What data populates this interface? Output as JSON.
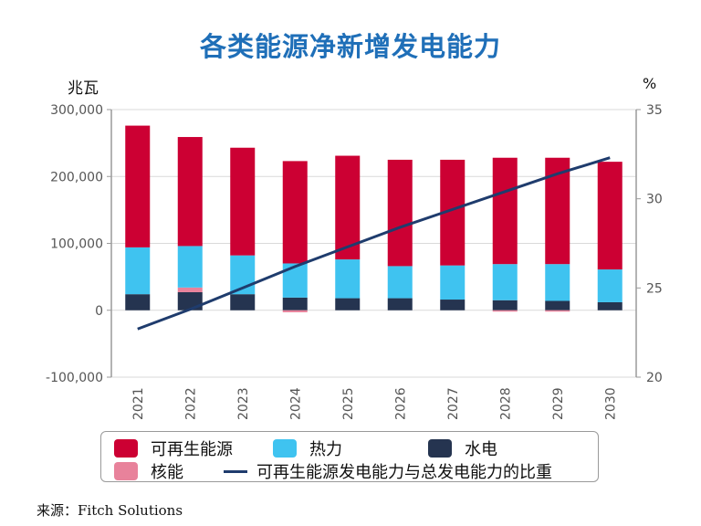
{
  "title": "各类能源净新增发电能力",
  "unit_left": "兆瓦",
  "unit_right": "%",
  "source": "来源：Fitch Solutions",
  "colors": {
    "renewable": "#cc0033",
    "thermal": "#3fc3f0",
    "hydro": "#253450",
    "nuclear": "#e8829b",
    "share_line": "#1f3c6d",
    "grid": "#d9d9d9",
    "axis": "#9a9a9a"
  },
  "legend": {
    "renewable": "可再生能源",
    "thermal": "热力",
    "hydro": "水电",
    "nuclear": "核能",
    "share_line": "可再生能源发电能力与总发电能力的比重"
  },
  "chart_data": {
    "type": "bar",
    "stacked": true,
    "categories": [
      "2021",
      "2022",
      "2023",
      "2024",
      "2025",
      "2026",
      "2027",
      "2028",
      "2029",
      "2030"
    ],
    "series": [
      {
        "name": "水电",
        "key": "hydro",
        "values": [
          24000,
          27000,
          24000,
          19000,
          18000,
          18000,
          16000,
          15000,
          14000,
          12000
        ]
      },
      {
        "name": "核能",
        "key": "nuclear",
        "values": [
          0,
          7000,
          0,
          -3000,
          0,
          0,
          0,
          -1500,
          -1500,
          0
        ]
      },
      {
        "name": "热力",
        "key": "thermal",
        "values": [
          70000,
          62000,
          58000,
          51000,
          58000,
          48000,
          51000,
          54000,
          55000,
          49000
        ]
      },
      {
        "name": "可再生能源",
        "key": "renewable",
        "values": [
          182000,
          163000,
          161000,
          153000,
          155000,
          159000,
          158000,
          159000,
          159000,
          161000
        ]
      }
    ],
    "line": {
      "name": "可再生能源发电能力与总发电能力的比重",
      "axis": "right",
      "values": [
        22.7,
        23.8,
        25.0,
        26.2,
        27.3,
        28.4,
        29.4,
        30.4,
        31.4,
        32.3
      ]
    },
    "y_left": {
      "min": -100000,
      "max": 300000,
      "ticks": [
        -100000,
        0,
        100000,
        200000,
        300000
      ],
      "tick_labels": [
        "-100,000",
        "0",
        "100,000",
        "200,000",
        "300,000"
      ],
      "label": "兆瓦"
    },
    "y_right": {
      "min": 20,
      "max": 35,
      "ticks": [
        20,
        25,
        30,
        35
      ],
      "tick_labels": [
        "20",
        "25",
        "30",
        "35"
      ],
      "label": "%"
    },
    "grid": true,
    "legend_position": "bottom"
  }
}
